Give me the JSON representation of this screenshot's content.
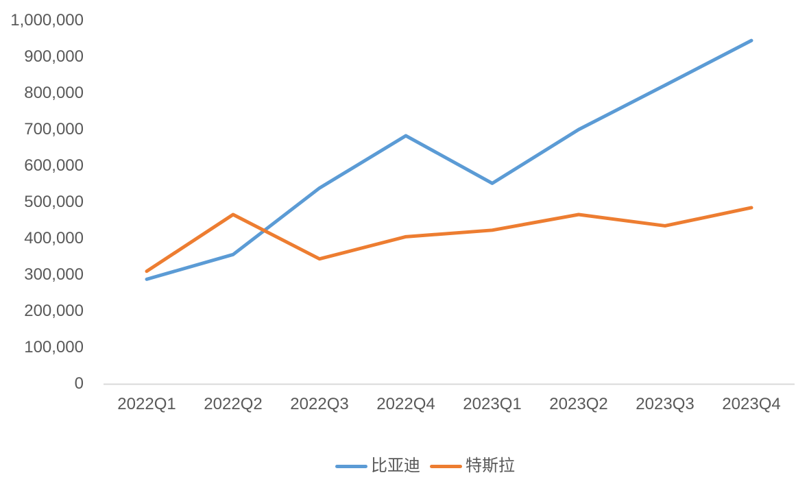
{
  "chart_data": {
    "type": "line",
    "title": "",
    "xlabel": "",
    "ylabel": "",
    "categories": [
      "2022Q1",
      "2022Q2",
      "2022Q3",
      "2022Q4",
      "2023Q1",
      "2023Q2",
      "2023Q3",
      "2023Q4"
    ],
    "series": [
      {
        "name": "比亚迪",
        "color": "#5B9BD5",
        "values": [
          288000,
          356000,
          539000,
          683000,
          552000,
          700000,
          822000,
          945000
        ]
      },
      {
        "name": "特斯拉",
        "color": "#ED7D31",
        "values": [
          310000,
          466000,
          344000,
          405000,
          423000,
          466000,
          435000,
          485000
        ]
      }
    ],
    "ylim": [
      0,
      1000000
    ],
    "ytick_step": 100000,
    "ytick_labels": [
      "0",
      "100,000",
      "200,000",
      "300,000",
      "400,000",
      "500,000",
      "600,000",
      "700,000",
      "800,000",
      "900,000",
      "1,000,000"
    ],
    "grid": false,
    "legend_position": "bottom",
    "colors": {
      "axis_line": "#D9D9D9",
      "tick_text": "#595959",
      "background": "#FFFFFF"
    }
  }
}
